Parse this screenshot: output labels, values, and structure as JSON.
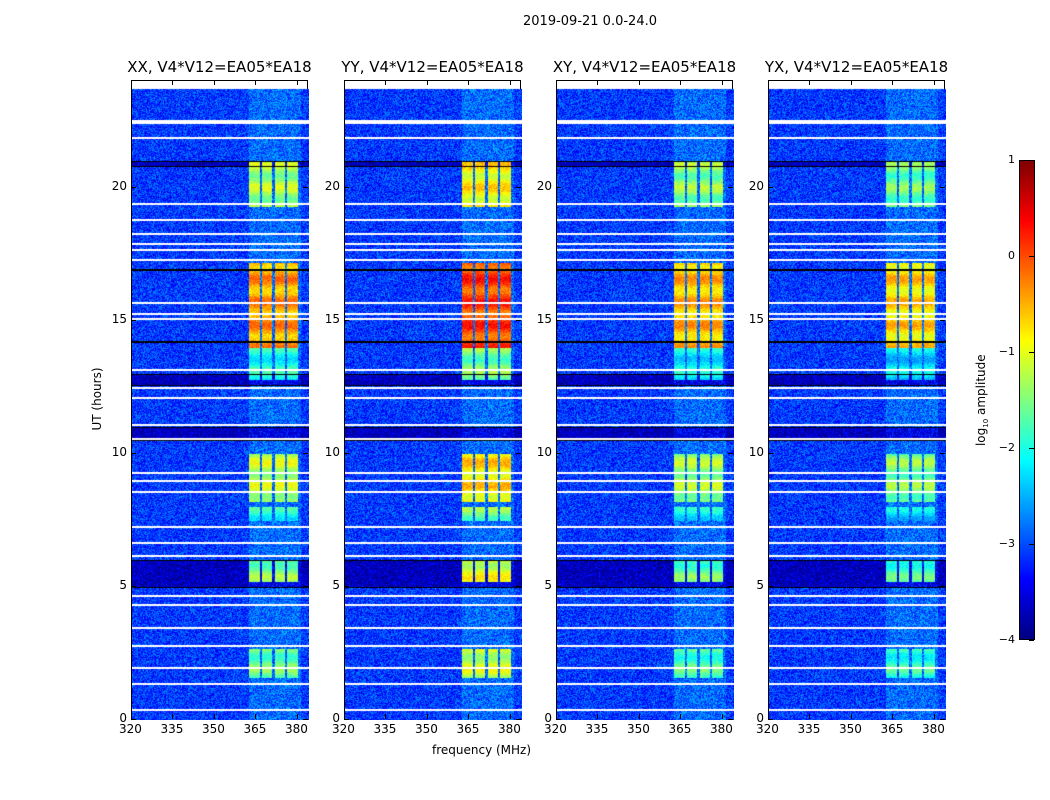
{
  "chart_data": {
    "type": "heatmap",
    "title": "2019-09-21 0.0-24.0",
    "xlabel": "frequency (MHz)",
    "ylabel": "UT (hours)",
    "xlim": [
      320,
      384
    ],
    "ylim": [
      0,
      24
    ],
    "xticks": [
      320,
      335,
      350,
      365,
      380
    ],
    "yticks": [
      0,
      5,
      10,
      15,
      20
    ],
    "panels": [
      {
        "title": "XX, V4*V12=EA05*EA18",
        "gain": 1.0
      },
      {
        "title": "YY, V4*V12=EA05*EA18",
        "gain": 1.15
      },
      {
        "title": "XY, V4*V12=EA05*EA18",
        "gain": 0.95
      },
      {
        "title": "YX, V4*V12=EA05*EA18",
        "gain": 0.9
      }
    ],
    "data_time_range": [
      0,
      23.7
    ],
    "background_log_amplitude": -3.1,
    "rfi_channels_mhz": [
      [
        362,
        366
      ],
      [
        367,
        370.5
      ],
      [
        371.5,
        375
      ],
      [
        376,
        380
      ]
    ],
    "rfi_episodes": [
      {
        "t": [
          14.0,
          17.2
        ],
        "level": -0.4
      },
      {
        "t": [
          19.3,
          21.0
        ],
        "level": -1.3
      },
      {
        "t": [
          8.2,
          10.0
        ],
        "level": -1.2
      },
      {
        "t": [
          5.2,
          6.0
        ],
        "level": -1.5
      },
      {
        "t": [
          1.6,
          2.7
        ],
        "level": -1.6
      },
      {
        "t": [
          7.5,
          8.0
        ],
        "level": -2.0
      },
      {
        "t": [
          12.8,
          14.0
        ],
        "level": -2.0
      }
    ],
    "flagged_times_hours": [
      0.4,
      1.4,
      2.0,
      2.8,
      3.5,
      4.35,
      4.7,
      6.2,
      6.7,
      7.3,
      8.6,
      9.0,
      9.3,
      10.6,
      11.1,
      12.15,
      12.5,
      13.2,
      15.1,
      15.3,
      15.7,
      17.3,
      17.7,
      17.9,
      18.3,
      18.8,
      19.4,
      21.9,
      22.45,
      22.55
    ],
    "dark_times_hours": [
      [
        5.0,
        6.0
      ],
      [
        10.5,
        11.0
      ],
      [
        12.6,
        13.0
      ],
      [
        14.2,
        14.25
      ],
      [
        16.9,
        16.95
      ],
      [
        20.8,
        21.0
      ]
    ],
    "colorbar": {
      "label": "log10 amplitude",
      "label_main": "log",
      "label_sub": "10",
      "label_rest": " amplitude",
      "range": [
        -4,
        1
      ],
      "ticks": [
        -4,
        -3,
        -2,
        -1,
        0,
        1
      ],
      "colormap": "jet"
    }
  }
}
